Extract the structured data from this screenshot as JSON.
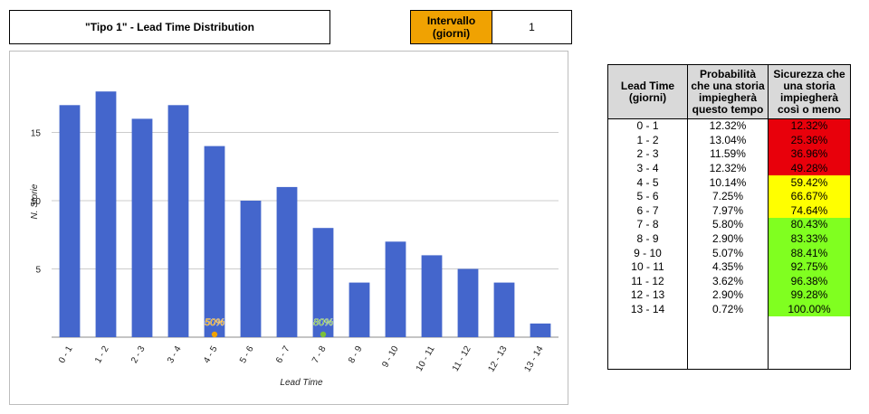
{
  "header": {
    "title": "\"Tipo 1\" - Lead Time Distribution",
    "interval_label": "Intervallo (giorni)",
    "interval_value": "1",
    "interval_color": "#f0a202"
  },
  "chart_data": {
    "type": "bar",
    "title": "",
    "xlabel": "Lead Time",
    "ylabel": "N. Storie",
    "categories": [
      "0 - 1",
      "1 - 2",
      "2 - 3",
      "3 - 4",
      "4 - 5",
      "5 - 6",
      "6 - 7",
      "7 - 8",
      "8 - 9",
      "9 - 10",
      "10 - 11",
      "11 - 12",
      "12 - 13",
      "13 - 14"
    ],
    "values": [
      17,
      18,
      16,
      17,
      14,
      10,
      11,
      8,
      4,
      7,
      6,
      5,
      4,
      1
    ],
    "ylim": [
      0,
      20
    ],
    "yticks": [
      5,
      10,
      15
    ],
    "grid": true,
    "bar_color": "#4466cc",
    "markers": [
      {
        "label": "50%",
        "category": "4 - 5",
        "color": "#f0a202"
      },
      {
        "label": "80%",
        "category": "7 - 8",
        "color": "#7bbf3a"
      }
    ]
  },
  "table": {
    "headers": [
      "Lead Time (giorni)",
      "Probabilità che una storia impiegherà questo tempo",
      "Sicurezza che una storia impiegherà così o meno"
    ],
    "rows": [
      {
        "range": "0 - 1",
        "prob": "12.32%",
        "safety": "12.32%",
        "color": "#e8000b"
      },
      {
        "range": "1 - 2",
        "prob": "13.04%",
        "safety": "25.36%",
        "color": "#e8000b"
      },
      {
        "range": "2 - 3",
        "prob": "11.59%",
        "safety": "36.96%",
        "color": "#e8000b"
      },
      {
        "range": "3 - 4",
        "prob": "12.32%",
        "safety": "49.28%",
        "color": "#e8000b"
      },
      {
        "range": "4 - 5",
        "prob": "10.14%",
        "safety": "59.42%",
        "color": "#ffff00"
      },
      {
        "range": "5 - 6",
        "prob": "7.25%",
        "safety": "66.67%",
        "color": "#ffff00"
      },
      {
        "range": "6 - 7",
        "prob": "7.97%",
        "safety": "74.64%",
        "color": "#ffff00"
      },
      {
        "range": "7 - 8",
        "prob": "5.80%",
        "safety": "80.43%",
        "color": "#80ff20"
      },
      {
        "range": "8 - 9",
        "prob": "2.90%",
        "safety": "83.33%",
        "color": "#80ff20"
      },
      {
        "range": "9 - 10",
        "prob": "5.07%",
        "safety": "88.41%",
        "color": "#80ff20"
      },
      {
        "range": "10 - 11",
        "prob": "4.35%",
        "safety": "92.75%",
        "color": "#80ff20"
      },
      {
        "range": "11 - 12",
        "prob": "3.62%",
        "safety": "96.38%",
        "color": "#80ff20"
      },
      {
        "range": "12 - 13",
        "prob": "2.90%",
        "safety": "99.28%",
        "color": "#80ff20"
      },
      {
        "range": "13 - 14",
        "prob": "0.72%",
        "safety": "100.00%",
        "color": "#80ff20"
      }
    ]
  }
}
